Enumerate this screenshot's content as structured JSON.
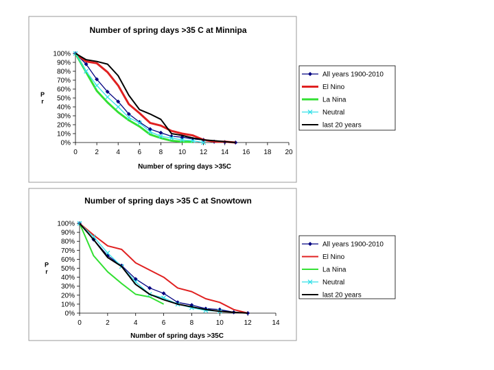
{
  "chart_data": [
    {
      "type": "line",
      "title": "Number of spring days >35 C at Minnipa",
      "xlabel": "Number of spring days >35C",
      "ylabel": "P r",
      "xlim": [
        0,
        20
      ],
      "ylim": [
        0,
        100
      ],
      "xticks": [
        "0",
        "2",
        "4",
        "6",
        "8",
        "10",
        "12",
        "14",
        "16",
        "18",
        "20"
      ],
      "yticks": [
        "0%",
        "10%",
        "20%",
        "30%",
        "40%",
        "50%",
        "60%",
        "70%",
        "80%",
        "90%",
        "100%"
      ],
      "legend_position": "right",
      "series": [
        {
          "name": "All years 1900-2010",
          "color": "#000080",
          "width": 1.3,
          "marker": "diamond",
          "x": [
            0,
            1,
            2,
            3,
            4,
            5,
            6,
            7,
            8,
            9,
            10,
            11,
            12,
            13,
            14,
            15
          ],
          "y": [
            100,
            88,
            71,
            57,
            46,
            32,
            23,
            15,
            11,
            7,
            6,
            4,
            3,
            1,
            0.5,
            0
          ]
        },
        {
          "name": "El Nino",
          "color": "#e02020",
          "width": 3,
          "marker": "none",
          "x": [
            0,
            1,
            2,
            3,
            4,
            5,
            6,
            7,
            8,
            9,
            10,
            11,
            12,
            13,
            14,
            15
          ],
          "y": [
            100,
            91,
            89,
            79,
            64,
            43,
            33,
            22,
            19,
            13,
            10,
            8,
            3,
            1,
            1,
            0
          ]
        },
        {
          "name": "La Nina",
          "color": "#33e033",
          "width": 3,
          "marker": "none",
          "x": [
            0,
            1,
            2,
            3,
            4,
            5,
            6,
            7,
            8,
            9,
            10,
            11
          ],
          "y": [
            100,
            79,
            58,
            45,
            34,
            25,
            18,
            9,
            5,
            2,
            1,
            0.5
          ]
        },
        {
          "name": "Neutral",
          "color": "#33e0e8",
          "width": 1.3,
          "marker": "x",
          "x": [
            0,
            1,
            2,
            3,
            4,
            5,
            6,
            7,
            8,
            9,
            10,
            11,
            12
          ],
          "y": [
            100,
            80,
            64,
            51,
            40,
            28,
            22,
            12,
            7,
            5,
            3,
            2,
            0
          ]
        },
        {
          "name": "last 20 years",
          "color": "#000000",
          "width": 2,
          "marker": "none",
          "x": [
            0,
            1,
            2,
            3,
            4,
            5,
            6,
            7,
            8,
            9,
            10,
            11,
            12,
            13,
            14,
            15
          ],
          "y": [
            100,
            93,
            91,
            88,
            75,
            53,
            37,
            32,
            26,
            10,
            8,
            5,
            3,
            2,
            1,
            0
          ]
        }
      ]
    },
    {
      "type": "line",
      "title": "Number of spring days >35 C at Snowtown",
      "xlabel": "Number of spring days >35C",
      "ylabel": "P r",
      "xlim": [
        0,
        14
      ],
      "ylim": [
        0,
        100
      ],
      "xticks": [
        "0",
        "2",
        "4",
        "6",
        "8",
        "10",
        "12",
        "14"
      ],
      "yticks": [
        "0%",
        "10%",
        "20%",
        "30%",
        "40%",
        "50%",
        "60%",
        "70%",
        "80%",
        "90%",
        "100%"
      ],
      "legend_position": "right",
      "series": [
        {
          "name": "All years 1900-2010",
          "color": "#000080",
          "width": 1.3,
          "marker": "diamond",
          "x": [
            0,
            1,
            2,
            3,
            4,
            5,
            6,
            7,
            8,
            9,
            10,
            11,
            12
          ],
          "y": [
            100,
            82,
            64,
            53,
            38,
            28,
            22,
            12,
            9,
            5,
            4,
            1,
            0
          ]
        },
        {
          "name": "El Nino",
          "color": "#e02020",
          "width": 2,
          "marker": "none",
          "x": [
            0,
            1,
            2,
            3,
            4,
            5,
            6,
            7,
            8,
            9,
            10,
            11,
            12
          ],
          "y": [
            100,
            87,
            75,
            71,
            56,
            48,
            40,
            28,
            24,
            16,
            12,
            4,
            0
          ]
        },
        {
          "name": "La Nina",
          "color": "#33e033",
          "width": 2,
          "marker": "none",
          "x": [
            0,
            1,
            2,
            3,
            4,
            5,
            6
          ],
          "y": [
            100,
            64,
            46,
            33,
            21,
            18,
            10
          ]
        },
        {
          "name": "Neutral",
          "color": "#33e0e8",
          "width": 1.3,
          "marker": "x",
          "x": [
            0,
            1,
            2,
            3,
            4,
            5,
            6,
            7,
            8,
            9,
            10
          ],
          "y": [
            100,
            85,
            67,
            52,
            35,
            21,
            17,
            10,
            6,
            3,
            2
          ]
        },
        {
          "name": "last 20 years",
          "color": "#000000",
          "width": 2,
          "marker": "none",
          "x": [
            0,
            1,
            2,
            3,
            4,
            5,
            6,
            7,
            8,
            9,
            10,
            11,
            12
          ],
          "y": [
            100,
            82,
            62,
            52,
            32,
            21,
            15,
            10,
            7,
            4,
            2,
            1,
            0
          ]
        }
      ]
    }
  ]
}
